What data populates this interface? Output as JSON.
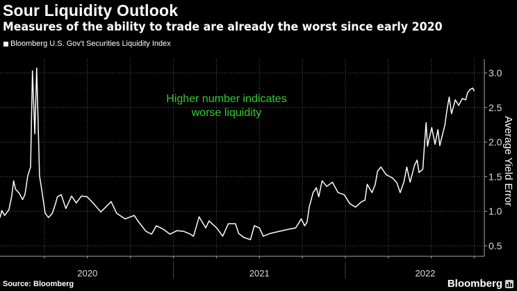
{
  "header": {
    "title": "Sour Liquidity Outlook",
    "subtitle": "Measures of the ability to trade are already the worst since early 2020"
  },
  "footer": {
    "source": "Source: Bloomberg",
    "logo": "Bloomberg"
  },
  "colors": {
    "background": "#000000",
    "line": "#ffffff",
    "annotation": "#33cc33",
    "grid": "#555555"
  },
  "chart_data": {
    "type": "line",
    "title": "Sour Liquidity Outlook",
    "subtitle": "Measures of the ability to trade are already the worst since early 2020",
    "xlabel": "",
    "ylabel": "Average Yield Error",
    "y_axis_position": "right",
    "ylim": [
      0.35,
      3.2
    ],
    "yticks": [
      0.5,
      1.0,
      1.5,
      2.0,
      2.5,
      3.0
    ],
    "ytick_labels": [
      "0.5",
      "1.0",
      "1.5",
      "2.0",
      "2.5",
      "3.0"
    ],
    "xtick_labels": [
      "2020",
      "2021",
      "2022"
    ],
    "grid": true,
    "legend": {
      "position": "top-left",
      "entries": [
        "Bloomberg U.S. Gov't Securities Liquidity Index"
      ]
    },
    "annotation": [
      "Higher number indicates",
      "worse liquidity"
    ],
    "series": [
      {
        "name": "Bloomberg U.S. Gov't Securities Liquidity Index",
        "points": [
          [
            "2019-12-29",
            0.91
          ],
          [
            "2020-01-02",
            1.01
          ],
          [
            "2020-01-08",
            0.94
          ],
          [
            "2020-01-17",
            1.02
          ],
          [
            "2020-01-23",
            1.22
          ],
          [
            "2020-01-27",
            1.44
          ],
          [
            "2020-01-31",
            1.32
          ],
          [
            "2020-02-08",
            1.26
          ],
          [
            "2020-02-15",
            1.17
          ],
          [
            "2020-02-20",
            1.24
          ],
          [
            "2020-02-26",
            1.51
          ],
          [
            "2020-03-03",
            1.64
          ],
          [
            "2020-03-07",
            3.03
          ],
          [
            "2020-03-12",
            2.12
          ],
          [
            "2020-03-16",
            3.07
          ],
          [
            "2020-03-22",
            1.51
          ],
          [
            "2020-03-26",
            1.34
          ],
          [
            "2020-04-03",
            0.97
          ],
          [
            "2020-04-10",
            0.91
          ],
          [
            "2020-04-18",
            0.97
          ],
          [
            "2020-04-25",
            1.11
          ],
          [
            "2020-04-29",
            1.21
          ],
          [
            "2020-05-07",
            1.24
          ],
          [
            "2020-05-17",
            1.04
          ],
          [
            "2020-05-29",
            1.22
          ],
          [
            "2020-06-08",
            1.12
          ],
          [
            "2020-06-19",
            1.22
          ],
          [
            "2020-07-01",
            1.21
          ],
          [
            "2020-07-15",
            1.11
          ],
          [
            "2020-07-30",
            0.99
          ],
          [
            "2020-08-11",
            1.07
          ],
          [
            "2020-08-21",
            1.14
          ],
          [
            "2020-09-02",
            0.97
          ],
          [
            "2020-09-20",
            0.89
          ],
          [
            "2020-10-09",
            0.94
          ],
          [
            "2020-10-19",
            0.84
          ],
          [
            "2020-11-03",
            0.71
          ],
          [
            "2020-11-15",
            0.67
          ],
          [
            "2020-11-25",
            0.79
          ],
          [
            "2020-12-10",
            0.74
          ],
          [
            "2020-12-24",
            0.67
          ],
          [
            "2021-01-08",
            0.72
          ],
          [
            "2021-01-22",
            0.71
          ],
          [
            "2021-02-05",
            0.67
          ],
          [
            "2021-02-12",
            0.64
          ],
          [
            "2021-02-24",
            0.92
          ],
          [
            "2021-03-10",
            0.76
          ],
          [
            "2021-03-17",
            0.86
          ],
          [
            "2021-04-02",
            0.76
          ],
          [
            "2021-04-15",
            0.64
          ],
          [
            "2021-04-27",
            0.82
          ],
          [
            "2021-05-12",
            0.82
          ],
          [
            "2021-05-19",
            0.68
          ],
          [
            "2021-05-30",
            0.62
          ],
          [
            "2021-06-13",
            0.59
          ],
          [
            "2021-06-21",
            0.79
          ],
          [
            "2021-07-02",
            0.76
          ],
          [
            "2021-07-10",
            0.64
          ],
          [
            "2021-07-25",
            0.68
          ],
          [
            "2021-08-13",
            0.71
          ],
          [
            "2021-09-02",
            0.74
          ],
          [
            "2021-09-17",
            0.76
          ],
          [
            "2021-09-29",
            0.89
          ],
          [
            "2021-10-06",
            0.79
          ],
          [
            "2021-10-11",
            0.84
          ],
          [
            "2021-10-16",
            1.07
          ],
          [
            "2021-10-24",
            1.27
          ],
          [
            "2021-10-31",
            1.34
          ],
          [
            "2021-11-05",
            1.21
          ],
          [
            "2021-11-12",
            1.44
          ],
          [
            "2021-11-22",
            1.36
          ],
          [
            "2021-12-04",
            1.42
          ],
          [
            "2021-12-16",
            1.27
          ],
          [
            "2021-12-29",
            1.24
          ],
          [
            "2022-01-10",
            1.11
          ],
          [
            "2022-01-22",
            1.06
          ],
          [
            "2022-02-04",
            1.14
          ],
          [
            "2022-02-11",
            1.16
          ],
          [
            "2022-02-16",
            1.39
          ],
          [
            "2022-02-26",
            1.27
          ],
          [
            "2022-03-05",
            1.39
          ],
          [
            "2022-03-10",
            1.58
          ],
          [
            "2022-03-17",
            1.64
          ],
          [
            "2022-03-28",
            1.53
          ],
          [
            "2022-04-11",
            1.48
          ],
          [
            "2022-04-20",
            1.41
          ],
          [
            "2022-04-27",
            1.27
          ],
          [
            "2022-05-05",
            1.43
          ],
          [
            "2022-05-11",
            1.64
          ],
          [
            "2022-05-18",
            1.42
          ],
          [
            "2022-05-27",
            1.66
          ],
          [
            "2022-06-02",
            1.74
          ],
          [
            "2022-06-06",
            1.56
          ],
          [
            "2022-06-14",
            1.61
          ],
          [
            "2022-06-18",
            2.01
          ],
          [
            "2022-06-21",
            2.28
          ],
          [
            "2022-06-24",
            1.94
          ],
          [
            "2022-07-03",
            2.21
          ],
          [
            "2022-07-10",
            1.97
          ],
          [
            "2022-07-16",
            2.18
          ],
          [
            "2022-07-20",
            1.95
          ],
          [
            "2022-07-31",
            2.25
          ],
          [
            "2022-08-04",
            2.45
          ],
          [
            "2022-08-09",
            2.65
          ],
          [
            "2022-08-14",
            2.41
          ],
          [
            "2022-08-22",
            2.61
          ],
          [
            "2022-08-29",
            2.53
          ],
          [
            "2022-09-06",
            2.63
          ],
          [
            "2022-09-13",
            2.61
          ],
          [
            "2022-09-17",
            2.71
          ],
          [
            "2022-09-22",
            2.76
          ],
          [
            "2022-09-28",
            2.78
          ],
          [
            "2022-10-01",
            2.74
          ]
        ]
      }
    ]
  }
}
